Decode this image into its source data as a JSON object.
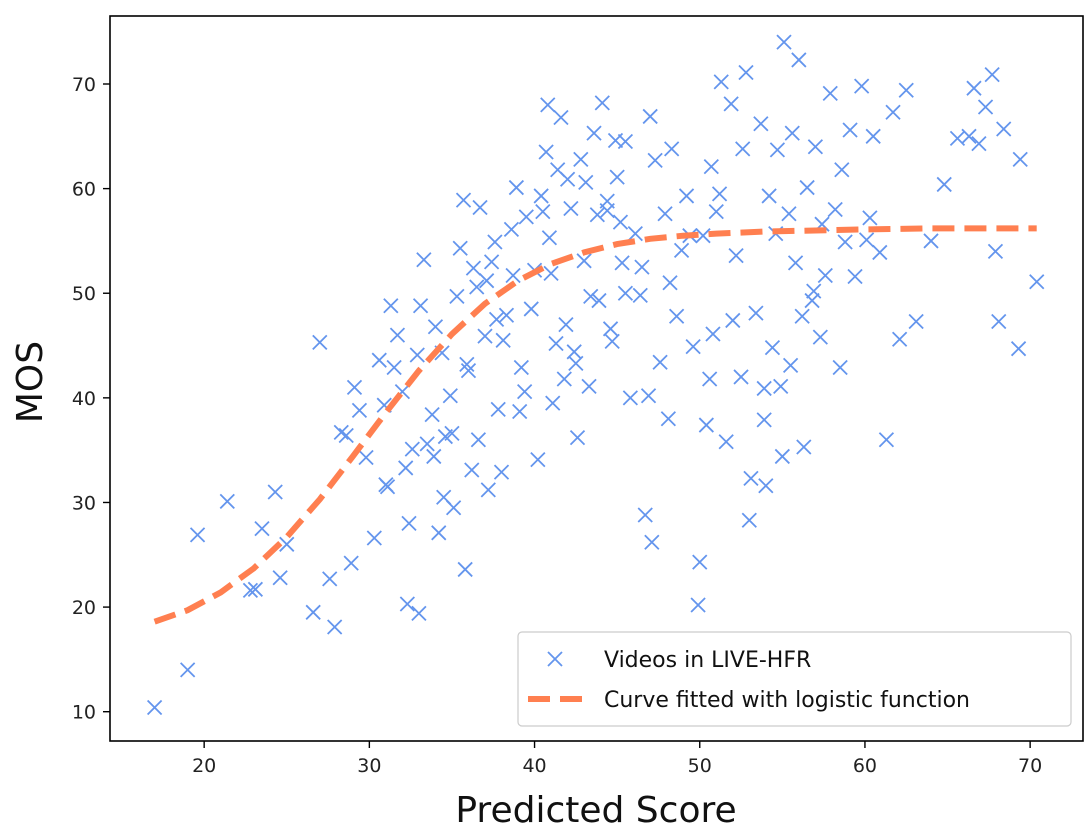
{
  "chart_data": {
    "type": "scatter",
    "xlabel": "Predicted Score",
    "ylabel": "MOS",
    "xlim": [
      14.3,
      73.2
    ],
    "ylim": [
      7.2,
      76.5
    ],
    "xticks": [
      20,
      30,
      40,
      50,
      60,
      70
    ],
    "yticks": [
      10,
      20,
      30,
      40,
      50,
      60,
      70
    ],
    "grid": false,
    "legend": {
      "position": "lower-right"
    },
    "colors": {
      "scatter": "#6495ED",
      "curve": "#FF7F50",
      "axes": "#000000"
    },
    "series": [
      {
        "name": "Videos in LIVE-HFR",
        "kind": "scatter",
        "marker": "x",
        "points": [
          [
            17.0,
            10.4
          ],
          [
            19.0,
            14.0
          ],
          [
            19.6,
            26.9
          ],
          [
            21.4,
            30.1
          ],
          [
            22.8,
            21.6
          ],
          [
            23.1,
            21.7
          ],
          [
            23.5,
            27.5
          ],
          [
            24.3,
            31.0
          ],
          [
            24.6,
            22.8
          ],
          [
            25.0,
            26.0
          ],
          [
            26.6,
            19.5
          ],
          [
            27.0,
            45.3
          ],
          [
            27.6,
            22.7
          ],
          [
            27.9,
            18.1
          ],
          [
            28.3,
            36.7
          ],
          [
            28.6,
            36.4
          ],
          [
            28.9,
            24.2
          ],
          [
            29.1,
            41.0
          ],
          [
            29.4,
            38.8
          ],
          [
            29.8,
            34.3
          ],
          [
            30.3,
            26.6
          ],
          [
            30.6,
            43.6
          ],
          [
            30.9,
            39.3
          ],
          [
            31.1,
            31.5
          ],
          [
            31.3,
            48.8
          ],
          [
            31.5,
            42.9
          ],
          [
            31.7,
            46.0
          ],
          [
            32.0,
            40.6
          ],
          [
            32.2,
            33.3
          ],
          [
            32.4,
            28.0
          ],
          [
            32.6,
            35.1
          ],
          [
            32.9,
            44.1
          ],
          [
            33.1,
            48.8
          ],
          [
            33.3,
            53.2
          ],
          [
            33.5,
            35.6
          ],
          [
            33.8,
            38.4
          ],
          [
            34.0,
            46.8
          ],
          [
            34.2,
            27.1
          ],
          [
            34.4,
            44.3
          ],
          [
            34.6,
            36.3
          ],
          [
            34.9,
            40.2
          ],
          [
            35.1,
            29.5
          ],
          [
            35.3,
            49.7
          ],
          [
            35.5,
            54.3
          ],
          [
            35.7,
            58.9
          ],
          [
            36.0,
            42.6
          ],
          [
            36.2,
            33.1
          ],
          [
            36.5,
            50.6
          ],
          [
            36.7,
            58.2
          ],
          [
            37.0,
            45.9
          ],
          [
            37.2,
            31.2
          ],
          [
            37.4,
            53.0
          ],
          [
            37.6,
            54.9
          ],
          [
            37.8,
            38.9
          ],
          [
            38.0,
            32.9
          ],
          [
            38.3,
            47.9
          ],
          [
            38.6,
            56.1
          ],
          [
            38.9,
            60.1
          ],
          [
            39.2,
            42.9
          ],
          [
            39.5,
            57.3
          ],
          [
            39.8,
            48.5
          ],
          [
            40.0,
            52.2
          ],
          [
            40.2,
            34.1
          ],
          [
            40.4,
            59.3
          ],
          [
            40.7,
            63.5
          ],
          [
            40.9,
            55.3
          ],
          [
            41.1,
            39.5
          ],
          [
            41.4,
            61.8
          ],
          [
            41.6,
            66.8
          ],
          [
            41.9,
            47.0
          ],
          [
            42.2,
            58.1
          ],
          [
            42.5,
            43.3
          ],
          [
            42.8,
            62.8
          ],
          [
            43.0,
            53.1
          ],
          [
            43.3,
            41.1
          ],
          [
            43.6,
            65.3
          ],
          [
            43.9,
            49.3
          ],
          [
            44.1,
            68.2
          ],
          [
            44.4,
            57.9
          ],
          [
            44.7,
            45.4
          ],
          [
            45.0,
            61.1
          ],
          [
            45.3,
            52.9
          ],
          [
            45.5,
            64.5
          ],
          [
            45.8,
            40.0
          ],
          [
            46.1,
            55.7
          ],
          [
            46.4,
            49.8
          ],
          [
            46.7,
            28.8
          ],
          [
            47.0,
            66.9
          ],
          [
            47.3,
            62.7
          ],
          [
            47.6,
            43.4
          ],
          [
            47.9,
            57.6
          ],
          [
            48.2,
            51.0
          ],
          [
            48.6,
            47.8
          ],
          [
            48.9,
            54.1
          ],
          [
            49.2,
            59.3
          ],
          [
            49.6,
            44.9
          ],
          [
            49.9,
            20.2
          ],
          [
            50.2,
            55.5
          ],
          [
            50.4,
            37.4
          ],
          [
            50.7,
            62.1
          ],
          [
            51.0,
            57.8
          ],
          [
            51.3,
            70.2
          ],
          [
            51.6,
            35.8
          ],
          [
            51.9,
            68.1
          ],
          [
            52.2,
            53.6
          ],
          [
            52.5,
            42.0
          ],
          [
            52.8,
            71.1
          ],
          [
            53.1,
            32.3
          ],
          [
            53.4,
            48.1
          ],
          [
            53.7,
            66.2
          ],
          [
            53.9,
            37.9
          ],
          [
            54.2,
            59.3
          ],
          [
            54.4,
            44.8
          ],
          [
            54.7,
            63.7
          ],
          [
            54.9,
            41.1
          ],
          [
            55.1,
            74.0
          ],
          [
            55.4,
            57.6
          ],
          [
            55.6,
            65.3
          ],
          [
            55.8,
            52.9
          ],
          [
            56.0,
            72.3
          ],
          [
            56.3,
            35.3
          ],
          [
            56.5,
            60.1
          ],
          [
            56.8,
            49.3
          ],
          [
            57.0,
            64.0
          ],
          [
            57.3,
            45.8
          ],
          [
            57.6,
            51.7
          ],
          [
            57.9,
            69.1
          ],
          [
            58.2,
            58.0
          ],
          [
            58.5,
            42.9
          ],
          [
            58.8,
            54.9
          ],
          [
            59.1,
            65.6
          ],
          [
            59.4,
            51.6
          ],
          [
            59.8,
            69.8
          ],
          [
            60.1,
            55.1
          ],
          [
            60.5,
            65.0
          ],
          [
            60.9,
            53.9
          ],
          [
            61.3,
            36.0
          ],
          [
            61.7,
            67.3
          ],
          [
            62.1,
            45.6
          ],
          [
            62.5,
            69.4
          ],
          [
            63.1,
            47.3
          ],
          [
            64.0,
            55.0
          ],
          [
            64.8,
            60.4
          ],
          [
            65.6,
            64.8
          ],
          [
            66.3,
            65.0
          ],
          [
            66.6,
            69.6
          ],
          [
            66.9,
            64.3
          ],
          [
            67.3,
            67.8
          ],
          [
            67.7,
            70.9
          ],
          [
            67.9,
            54.0
          ],
          [
            68.1,
            47.3
          ],
          [
            68.4,
            65.7
          ],
          [
            69.3,
            44.7
          ],
          [
            69.4,
            62.8
          ],
          [
            70.4,
            51.1
          ],
          [
            41.0,
            51.9
          ],
          [
            42.6,
            36.2
          ],
          [
            44.6,
            46.6
          ],
          [
            45.5,
            50.0
          ],
          [
            50.8,
            46.1
          ],
          [
            52.0,
            47.4
          ],
          [
            53.9,
            40.9
          ],
          [
            54.6,
            55.7
          ],
          [
            56.2,
            47.8
          ],
          [
            55.0,
            34.4
          ],
          [
            43.8,
            57.5
          ],
          [
            40.5,
            57.8
          ],
          [
            42.0,
            60.9
          ],
          [
            46.5,
            52.5
          ],
          [
            48.3,
            63.8
          ],
          [
            38.1,
            45.5
          ],
          [
            37.1,
            51.2
          ],
          [
            39.4,
            40.6
          ],
          [
            41.3,
            45.2
          ],
          [
            36.6,
            36.0
          ],
          [
            35.0,
            36.6
          ],
          [
            31.0,
            31.7
          ],
          [
            33.0,
            19.4
          ],
          [
            32.3,
            20.3
          ],
          [
            35.8,
            23.6
          ],
          [
            47.1,
            26.2
          ],
          [
            50.0,
            24.3
          ],
          [
            53.0,
            28.3
          ],
          [
            54.0,
            31.6
          ],
          [
            56.9,
            50.2
          ],
          [
            52.6,
            63.8
          ],
          [
            51.2,
            59.5
          ],
          [
            44.4,
            58.8
          ],
          [
            42.4,
            44.4
          ],
          [
            39.1,
            38.7
          ],
          [
            36.3,
            52.4
          ],
          [
            37.7,
            47.5
          ],
          [
            34.5,
            30.5
          ],
          [
            41.8,
            41.8
          ],
          [
            43.4,
            49.7
          ],
          [
            45.2,
            56.8
          ],
          [
            46.9,
            40.2
          ],
          [
            48.1,
            38.0
          ],
          [
            50.6,
            41.8
          ],
          [
            55.5,
            43.1
          ],
          [
            57.4,
            56.6
          ],
          [
            58.6,
            61.8
          ],
          [
            60.3,
            57.2
          ],
          [
            40.8,
            68.0
          ],
          [
            44.9,
            64.6
          ],
          [
            43.1,
            60.6
          ],
          [
            49.4,
            55.5
          ],
          [
            38.7,
            51.7
          ],
          [
            35.9,
            43.2
          ],
          [
            33.9,
            34.4
          ]
        ]
      },
      {
        "name": "Curve fitted with logistic function",
        "kind": "line",
        "style": "dashed",
        "points": [
          [
            17,
            18.6
          ],
          [
            19,
            19.7
          ],
          [
            21,
            21.4
          ],
          [
            23,
            23.7
          ],
          [
            25,
            26.7
          ],
          [
            27,
            30.3
          ],
          [
            29,
            34.4
          ],
          [
            31,
            38.6
          ],
          [
            33,
            42.6
          ],
          [
            35,
            46.1
          ],
          [
            37,
            49.0
          ],
          [
            39,
            51.2
          ],
          [
            41,
            52.8
          ],
          [
            43,
            53.9
          ],
          [
            45,
            54.7
          ],
          [
            47,
            55.2
          ],
          [
            49,
            55.5
          ],
          [
            51,
            55.7
          ],
          [
            54,
            55.9
          ],
          [
            57,
            56.0
          ],
          [
            60,
            56.1
          ],
          [
            64,
            56.2
          ],
          [
            67,
            56.2
          ],
          [
            70.4,
            56.2
          ]
        ]
      }
    ]
  }
}
